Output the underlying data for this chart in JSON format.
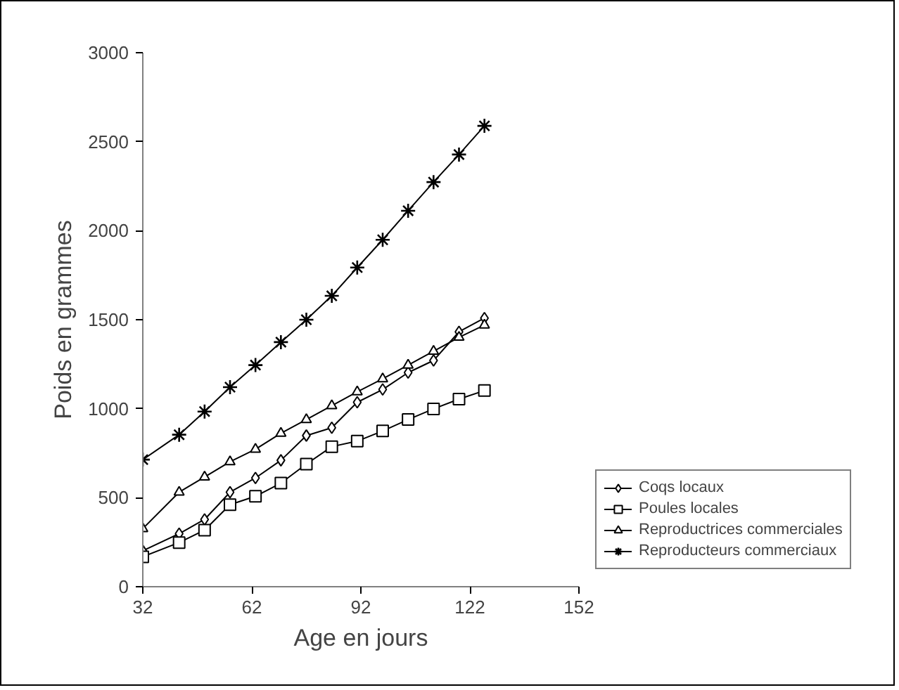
{
  "chart_data": {
    "type": "line",
    "xlabel": "Age en jours",
    "ylabel": "Poids en grammes",
    "x": [
      32,
      42,
      49,
      56,
      63,
      70,
      77,
      84,
      91,
      98,
      105,
      112,
      119,
      126
    ],
    "series": [
      {
        "name": "Coqs locaux",
        "color": "#000000",
        "marker": "diamond",
        "values": [
          202,
          298,
          378,
          531,
          611,
          710,
          849,
          893,
          1036,
          1108,
          1203,
          1271,
          1432,
          1509
        ]
      },
      {
        "name": "Poules locales",
        "color": "#000000",
        "marker": "square",
        "values": [
          168,
          248,
          318,
          461,
          508,
          582,
          689,
          787,
          818,
          875,
          939,
          999,
          1054,
          1102
        ]
      },
      {
        "name": "Reproductrices commerciales",
        "color": "#000000",
        "marker": "triangle",
        "values": [
          326,
          531,
          616,
          702,
          772,
          862,
          939,
          1017,
          1095,
          1168,
          1245,
          1323,
          1401,
          1470
        ]
      },
      {
        "name": "Reproducteurs commerciaux",
        "color": "#000000",
        "marker": "cross",
        "values": [
          714,
          854,
          984,
          1121,
          1245,
          1374,
          1500,
          1634,
          1793,
          1949,
          2112,
          2273,
          2428,
          2589
        ]
      }
    ],
    "xlim": [
      32,
      152
    ],
    "xticks": [
      32,
      62,
      92,
      122,
      152
    ],
    "ylim": [
      0,
      3000
    ],
    "yticks": [
      0,
      500,
      1000,
      1500,
      2000,
      2500,
      3000
    ],
    "grid": false,
    "legend": "right",
    "line_style": "solid"
  }
}
